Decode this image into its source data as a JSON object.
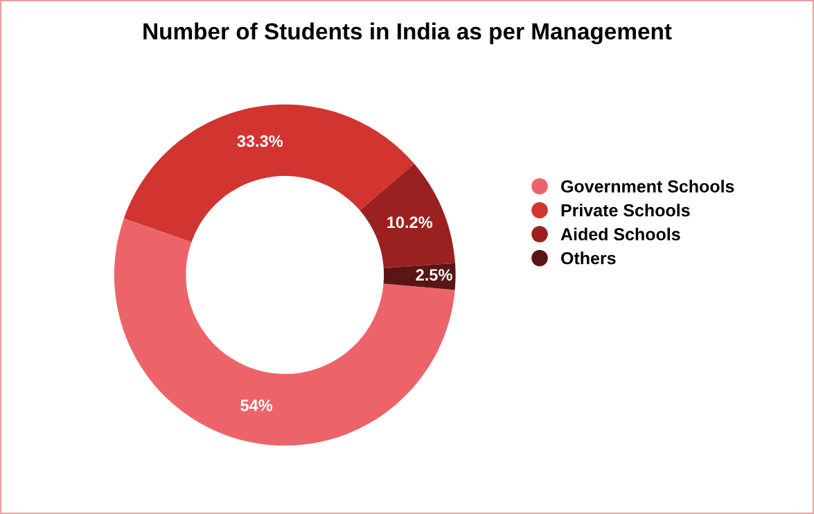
{
  "chart_data": {
    "type": "donut",
    "title": "Number of Students in India as per Management",
    "categories": [
      "Government Schools",
      "Private Schools",
      "Aided Schools",
      "Others"
    ],
    "values": [
      54,
      33.3,
      10.2,
      2.5
    ],
    "colors": [
      "#ec6469",
      "#d2342f",
      "#9b2121",
      "#5a1515"
    ],
    "value_labels": [
      "54%",
      "33.3%",
      "10.2%",
      "2.5%"
    ],
    "legend": "right"
  }
}
